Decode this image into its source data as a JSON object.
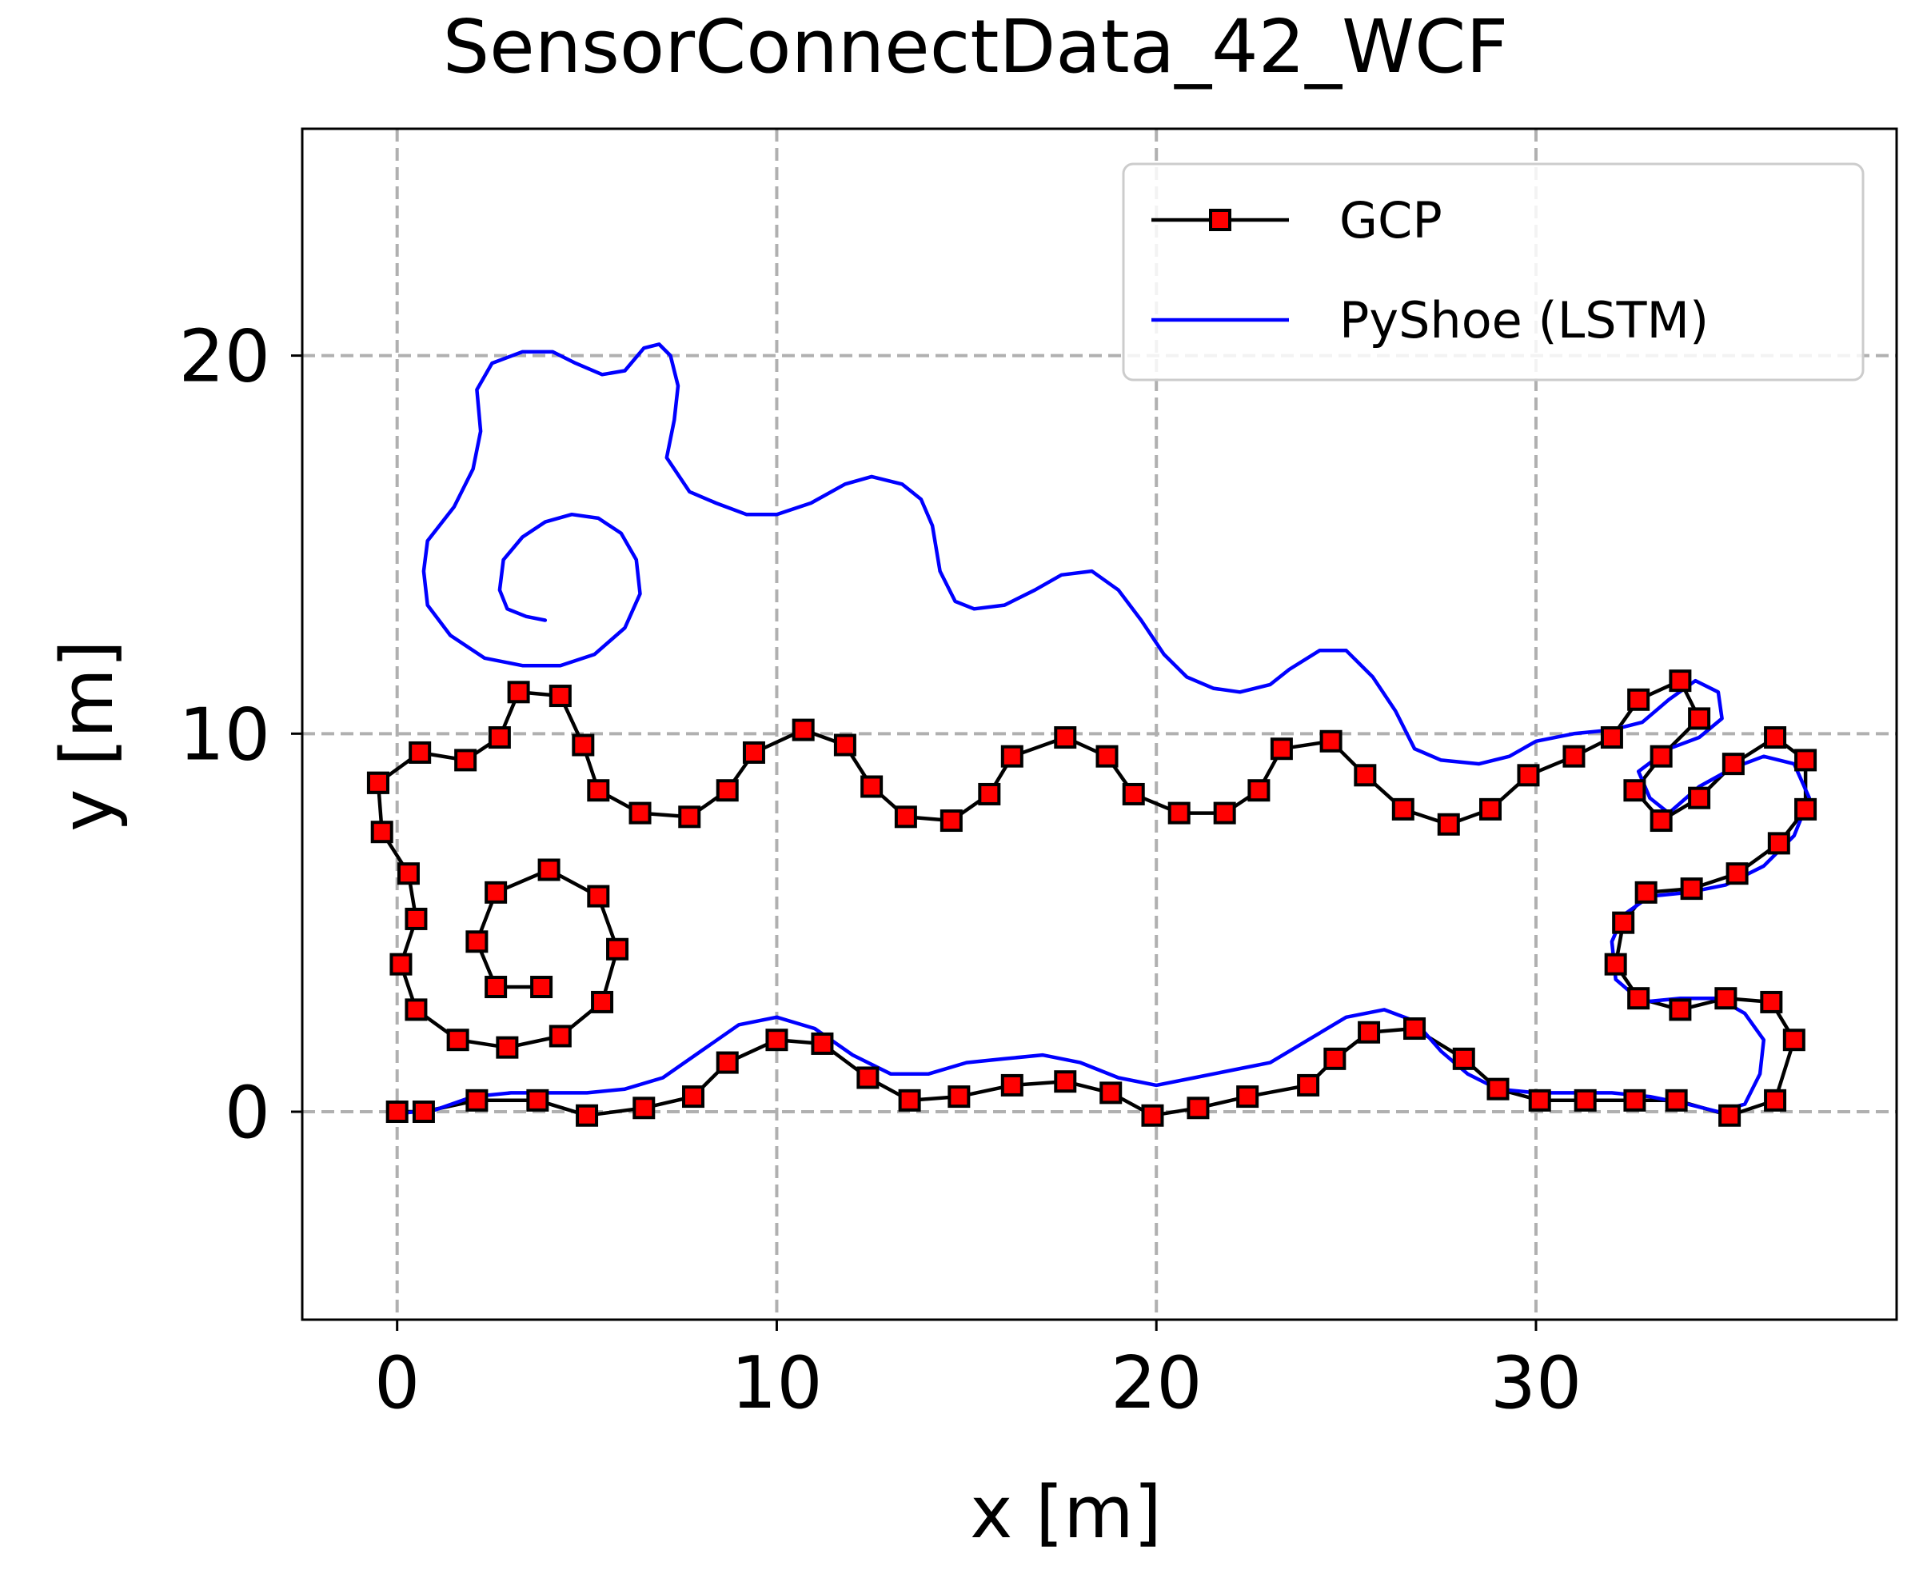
{
  "chart_data": {
    "type": "line",
    "title": "SensorConnectData_42_WCF",
    "xlabel": "x [m]",
    "ylabel": "y [m]",
    "xlim": [
      -2.5,
      39.5
    ],
    "ylim": [
      -5.5,
      26
    ],
    "xticks": [
      0,
      10,
      20,
      30
    ],
    "yticks": [
      0,
      10,
      20
    ],
    "xtick_labels": [
      "0",
      "10",
      "20",
      "30"
    ],
    "ytick_labels": [
      "0",
      "10",
      "20"
    ],
    "grid": true,
    "legend_position": "top-right",
    "series": [
      {
        "name": "GCP",
        "color": "#000000",
        "marker": "square",
        "marker_color": "#ff0000",
        "points": [
          [
            -0.5,
            8.7
          ],
          [
            -0.4,
            7.4
          ],
          [
            0.3,
            6.3
          ],
          [
            0.5,
            5.1
          ],
          [
            0.1,
            3.9
          ],
          [
            0.5,
            2.7
          ],
          [
            1.6,
            1.9
          ],
          [
            2.9,
            1.7
          ],
          [
            4.3,
            2.0
          ],
          [
            5.4,
            2.9
          ],
          [
            5.8,
            4.3
          ],
          [
            5.3,
            5.7
          ],
          [
            4.0,
            6.4
          ],
          [
            2.6,
            5.8
          ],
          [
            2.1,
            4.5
          ],
          [
            2.6,
            3.3
          ],
          [
            3.8,
            3.3
          ]
        ],
        "points_main": [
          [
            -0.5,
            8.7
          ],
          [
            0.6,
            9.5
          ],
          [
            1.8,
            9.3
          ],
          [
            2.7,
            9.9
          ],
          [
            3.2,
            11.1
          ],
          [
            4.3,
            11.0
          ],
          [
            4.9,
            9.7
          ],
          [
            5.3,
            8.5
          ],
          [
            6.4,
            7.9
          ],
          [
            7.7,
            7.8
          ],
          [
            8.7,
            8.5
          ],
          [
            9.4,
            9.5
          ],
          [
            10.7,
            10.1
          ],
          [
            11.8,
            9.7
          ],
          [
            12.5,
            8.6
          ],
          [
            13.4,
            7.8
          ],
          [
            14.6,
            7.7
          ],
          [
            15.6,
            8.4
          ],
          [
            16.2,
            9.4
          ],
          [
            17.6,
            9.9
          ],
          [
            18.7,
            9.4
          ],
          [
            19.4,
            8.4
          ],
          [
            20.6,
            7.9
          ],
          [
            21.8,
            7.9
          ],
          [
            22.7,
            8.5
          ],
          [
            23.3,
            9.6
          ],
          [
            24.6,
            9.8
          ],
          [
            25.5,
            8.9
          ],
          [
            26.5,
            8.0
          ],
          [
            27.7,
            7.6
          ],
          [
            28.8,
            8.0
          ],
          [
            29.8,
            8.9
          ],
          [
            31.0,
            9.4
          ],
          [
            32.0,
            9.9
          ],
          [
            32.7,
            10.9
          ],
          [
            33.8,
            11.4
          ],
          [
            34.3,
            10.4
          ],
          [
            33.3,
            9.4
          ],
          [
            32.6,
            8.5
          ],
          [
            33.3,
            7.7
          ],
          [
            34.3,
            8.3
          ],
          [
            35.2,
            9.2
          ],
          [
            36.3,
            9.9
          ],
          [
            37.1,
            9.3
          ],
          [
            37.1,
            8.0
          ],
          [
            36.4,
            7.1
          ],
          [
            35.3,
            6.3
          ],
          [
            34.1,
            5.9
          ],
          [
            32.9,
            5.8
          ],
          [
            32.3,
            5.0
          ],
          [
            32.1,
            3.9
          ],
          [
            32.7,
            3.0
          ],
          [
            33.8,
            2.7
          ],
          [
            35.0,
            3.0
          ],
          [
            36.2,
            2.9
          ],
          [
            36.8,
            1.9
          ],
          [
            36.3,
            0.3
          ],
          [
            35.1,
            -0.1
          ],
          [
            33.7,
            0.3
          ],
          [
            32.6,
            0.3
          ],
          [
            31.3,
            0.3
          ],
          [
            30.1,
            0.3
          ],
          [
            29.0,
            0.6
          ],
          [
            28.1,
            1.4
          ],
          [
            26.8,
            2.2
          ],
          [
            25.6,
            2.1
          ],
          [
            24.7,
            1.4
          ],
          [
            24.0,
            0.7
          ],
          [
            22.4,
            0.4
          ],
          [
            21.1,
            0.1
          ],
          [
            19.9,
            -0.1
          ],
          [
            18.8,
            0.5
          ],
          [
            17.6,
            0.8
          ],
          [
            16.2,
            0.7
          ],
          [
            14.8,
            0.4
          ],
          [
            13.5,
            0.3
          ],
          [
            12.4,
            0.9
          ],
          [
            11.2,
            1.8
          ],
          [
            10.0,
            1.9
          ],
          [
            8.7,
            1.3
          ],
          [
            7.8,
            0.4
          ],
          [
            6.5,
            0.1
          ],
          [
            5.0,
            -0.1
          ],
          [
            3.7,
            0.3
          ],
          [
            2.1,
            0.3
          ],
          [
            0.7,
            0.0
          ],
          [
            0.0,
            0.0
          ]
        ]
      },
      {
        "name": "PyShoe (LSTM)",
        "color": "#0000ff",
        "points": [
          [
            0.0,
            -0.05
          ],
          [
            1.0,
            0.05
          ],
          [
            2.0,
            0.4
          ],
          [
            3.0,
            0.5
          ],
          [
            4.0,
            0.5
          ],
          [
            5.0,
            0.5
          ],
          [
            6.0,
            0.6
          ],
          [
            7.0,
            0.9
          ],
          [
            8.0,
            1.6
          ],
          [
            9.0,
            2.3
          ],
          [
            10.0,
            2.5
          ],
          [
            11.0,
            2.2
          ],
          [
            12.0,
            1.5
          ],
          [
            13.0,
            1.0
          ],
          [
            14.0,
            1.0
          ],
          [
            15.0,
            1.3
          ],
          [
            16.0,
            1.4
          ],
          [
            17.0,
            1.5
          ],
          [
            18.0,
            1.3
          ],
          [
            19.0,
            0.9
          ],
          [
            20.0,
            0.7
          ],
          [
            21.0,
            0.9
          ],
          [
            22.0,
            1.1
          ],
          [
            23.0,
            1.3
          ],
          [
            24.0,
            1.9
          ],
          [
            25.0,
            2.5
          ],
          [
            26.0,
            2.7
          ],
          [
            26.8,
            2.4
          ],
          [
            27.5,
            1.6
          ],
          [
            28.2,
            1.0
          ],
          [
            29.0,
            0.6
          ],
          [
            30.0,
            0.5
          ],
          [
            31.0,
            0.5
          ],
          [
            32.0,
            0.5
          ],
          [
            33.0,
            0.4
          ],
          [
            34.0,
            0.2
          ],
          [
            34.8,
            0.0
          ],
          [
            35.5,
            0.2
          ],
          [
            35.9,
            1.0
          ],
          [
            36.0,
            1.9
          ],
          [
            35.5,
            2.6
          ],
          [
            34.8,
            3.0
          ],
          [
            33.8,
            3.0
          ],
          [
            32.8,
            2.9
          ],
          [
            32.1,
            3.5
          ],
          [
            32.0,
            4.5
          ],
          [
            32.3,
            5.2
          ],
          [
            33.0,
            5.7
          ],
          [
            34.0,
            5.8
          ],
          [
            35.0,
            6.0
          ],
          [
            36.0,
            6.5
          ],
          [
            36.8,
            7.3
          ],
          [
            37.2,
            8.3
          ],
          [
            36.8,
            9.2
          ],
          [
            36.0,
            9.4
          ],
          [
            35.2,
            9.1
          ],
          [
            34.3,
            8.6
          ],
          [
            33.5,
            7.9
          ],
          [
            33.0,
            8.3
          ],
          [
            32.7,
            9.0
          ],
          [
            33.5,
            9.6
          ],
          [
            34.3,
            9.9
          ],
          [
            34.9,
            10.4
          ],
          [
            34.8,
            11.1
          ],
          [
            34.2,
            11.4
          ],
          [
            33.5,
            10.9
          ],
          [
            32.8,
            10.3
          ],
          [
            32.0,
            10.1
          ],
          [
            31.0,
            10.0
          ],
          [
            30.0,
            9.8
          ],
          [
            29.3,
            9.4
          ],
          [
            28.5,
            9.2
          ],
          [
            27.5,
            9.3
          ],
          [
            26.8,
            9.6
          ],
          [
            26.3,
            10.6
          ],
          [
            25.7,
            11.5
          ],
          [
            25.0,
            12.2
          ],
          [
            24.3,
            12.2
          ],
          [
            23.5,
            11.7
          ],
          [
            23.0,
            11.3
          ],
          [
            22.2,
            11.1
          ],
          [
            21.5,
            11.2
          ],
          [
            20.8,
            11.5
          ],
          [
            20.2,
            12.1
          ],
          [
            19.6,
            13.0
          ],
          [
            19.0,
            13.8
          ],
          [
            18.3,
            14.3
          ],
          [
            17.5,
            14.2
          ],
          [
            16.8,
            13.8
          ],
          [
            16.0,
            13.4
          ],
          [
            15.2,
            13.3
          ],
          [
            14.7,
            13.5
          ],
          [
            14.3,
            14.3
          ],
          [
            14.1,
            15.5
          ],
          [
            13.8,
            16.2
          ],
          [
            13.3,
            16.6
          ],
          [
            12.5,
            16.8
          ],
          [
            11.8,
            16.6
          ],
          [
            10.9,
            16.1
          ],
          [
            10.0,
            15.8
          ],
          [
            9.2,
            15.8
          ],
          [
            8.4,
            16.1
          ],
          [
            7.7,
            16.4
          ],
          [
            7.1,
            17.3
          ],
          [
            7.3,
            18.3
          ],
          [
            7.4,
            19.2
          ],
          [
            7.2,
            20.0
          ],
          [
            6.9,
            20.3
          ],
          [
            6.5,
            20.2
          ],
          [
            6.0,
            19.6
          ],
          [
            5.4,
            19.5
          ],
          [
            4.7,
            19.8
          ],
          [
            4.1,
            20.1
          ],
          [
            3.3,
            20.1
          ],
          [
            2.5,
            19.8
          ],
          [
            2.1,
            19.1
          ],
          [
            2.2,
            18.0
          ],
          [
            2.0,
            17.0
          ],
          [
            1.5,
            16.0
          ],
          [
            0.8,
            15.1
          ],
          [
            0.7,
            14.3
          ],
          [
            0.8,
            13.4
          ],
          [
            1.4,
            12.6
          ],
          [
            2.3,
            12.0
          ],
          [
            3.3,
            11.8
          ],
          [
            4.3,
            11.8
          ],
          [
            5.2,
            12.1
          ],
          [
            6.0,
            12.8
          ],
          [
            6.4,
            13.7
          ],
          [
            6.3,
            14.6
          ],
          [
            5.9,
            15.3
          ],
          [
            5.3,
            15.7
          ],
          [
            4.6,
            15.8
          ],
          [
            3.9,
            15.6
          ],
          [
            3.3,
            15.2
          ],
          [
            2.8,
            14.6
          ],
          [
            2.7,
            13.8
          ],
          [
            2.9,
            13.3
          ],
          [
            3.4,
            13.1
          ],
          [
            3.9,
            13.0
          ]
        ]
      }
    ]
  }
}
